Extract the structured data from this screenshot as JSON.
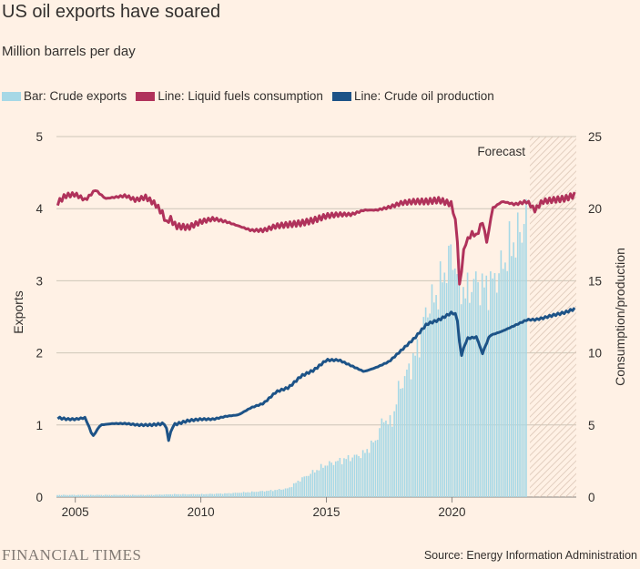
{
  "title": "US oil exports have soared",
  "subtitle": "Million barrels per day",
  "source": "Source: Energy Information Administration",
  "brand": "FINANCIAL TIMES",
  "colors": {
    "background": "#fff1e5",
    "bars": "#a6d8e6",
    "consumption": "#b0325b",
    "production": "#1d5387",
    "grid": "#cec6b9",
    "forecast_hatch": "#d9c3b3",
    "text": "#33302e"
  },
  "chart_data": {
    "type": "bar+line",
    "title": "US oil exports have soared",
    "subtitle": "Million barrels per day",
    "x_range": [
      2004.25,
      2024.95
    ],
    "x_ticks": [
      "2005",
      "2010",
      "2015",
      "2020"
    ],
    "x_tick_values": [
      2005,
      2010,
      2015,
      2020
    ],
    "left_axis": {
      "label": "Exports",
      "range": [
        0,
        5
      ],
      "ticks": [
        "0",
        "1",
        "2",
        "3",
        "4",
        "5"
      ],
      "tick_values": [
        0,
        1,
        2,
        3,
        4,
        5
      ]
    },
    "right_axis": {
      "label": "Consumption/production",
      "range": [
        0,
        25
      ],
      "ticks": [
        "0",
        "5",
        "10",
        "15",
        "20",
        "25"
      ],
      "tick_values": [
        0,
        5,
        10,
        15,
        20,
        25
      ]
    },
    "forecast": {
      "label": "Forecast",
      "start": 2023.1,
      "end": 2024.95
    },
    "grid": true,
    "legend_position": "top",
    "series": [
      {
        "name": "Bar: Crude exports",
        "axis": "left",
        "kind": "bar",
        "points": [
          [
            2004.3,
            0.03
          ],
          [
            2005.0,
            0.03
          ],
          [
            2006.0,
            0.03
          ],
          [
            2007.0,
            0.03
          ],
          [
            2008.0,
            0.03
          ],
          [
            2009.0,
            0.04
          ],
          [
            2010.0,
            0.04
          ],
          [
            2011.0,
            0.05
          ],
          [
            2012.0,
            0.07
          ],
          [
            2012.8,
            0.09
          ],
          [
            2013.5,
            0.12
          ],
          [
            2014.0,
            0.25
          ],
          [
            2014.5,
            0.35
          ],
          [
            2015.0,
            0.45
          ],
          [
            2015.5,
            0.5
          ],
          [
            2016.0,
            0.55
          ],
          [
            2016.5,
            0.6
          ],
          [
            2017.0,
            0.8
          ],
          [
            2017.3,
            1.1
          ],
          [
            2017.6,
            1.0
          ],
          [
            2017.9,
            1.5
          ],
          [
            2018.2,
            1.7
          ],
          [
            2018.6,
            2.0
          ],
          [
            2019.0,
            2.6
          ],
          [
            2019.4,
            2.8
          ],
          [
            2019.8,
            3.2
          ],
          [
            2020.0,
            3.4
          ],
          [
            2020.3,
            3.0
          ],
          [
            2020.6,
            2.8
          ],
          [
            2020.9,
            3.0
          ],
          [
            2021.3,
            2.9
          ],
          [
            2021.7,
            3.0
          ],
          [
            2022.0,
            3.2
          ],
          [
            2022.4,
            3.5
          ],
          [
            2022.8,
            3.7
          ],
          [
            2023.0,
            4.1
          ]
        ]
      },
      {
        "name": "Line: Liquid fuels consumption",
        "axis": "right",
        "kind": "line",
        "points": [
          [
            2004.3,
            20.4
          ],
          [
            2004.6,
            20.9
          ],
          [
            2005.0,
            21.0
          ],
          [
            2005.4,
            20.6
          ],
          [
            2005.8,
            21.3
          ],
          [
            2006.2,
            20.7
          ],
          [
            2006.6,
            20.8
          ],
          [
            2007.0,
            20.9
          ],
          [
            2007.4,
            20.6
          ],
          [
            2007.8,
            20.8
          ],
          [
            2008.2,
            20.3
          ],
          [
            2008.5,
            19.6
          ],
          [
            2008.65,
            18.9
          ],
          [
            2008.75,
            19.4
          ],
          [
            2009.0,
            18.8
          ],
          [
            2009.5,
            18.7
          ],
          [
            2010.0,
            19.1
          ],
          [
            2010.5,
            19.3
          ],
          [
            2011.0,
            19.1
          ],
          [
            2011.5,
            18.8
          ],
          [
            2012.0,
            18.5
          ],
          [
            2012.5,
            18.5
          ],
          [
            2013.0,
            18.8
          ],
          [
            2013.5,
            18.9
          ],
          [
            2014.0,
            19.0
          ],
          [
            2014.5,
            19.2
          ],
          [
            2015.0,
            19.5
          ],
          [
            2015.5,
            19.6
          ],
          [
            2016.0,
            19.6
          ],
          [
            2016.5,
            19.9
          ],
          [
            2017.0,
            19.9
          ],
          [
            2017.5,
            20.1
          ],
          [
            2018.0,
            20.4
          ],
          [
            2018.5,
            20.5
          ],
          [
            2019.0,
            20.5
          ],
          [
            2019.5,
            20.6
          ],
          [
            2020.0,
            20.3
          ],
          [
            2020.2,
            18.5
          ],
          [
            2020.3,
            14.6
          ],
          [
            2020.5,
            17.5
          ],
          [
            2020.8,
            18.3
          ],
          [
            2021.0,
            18.1
          ],
          [
            2021.2,
            19.2
          ],
          [
            2021.4,
            17.6
          ],
          [
            2021.6,
            20.0
          ],
          [
            2022.0,
            20.5
          ],
          [
            2022.5,
            20.3
          ],
          [
            2023.0,
            20.5
          ],
          [
            2023.3,
            19.9
          ],
          [
            2023.6,
            20.5
          ],
          [
            2024.0,
            20.6
          ],
          [
            2024.5,
            20.7
          ],
          [
            2024.95,
            21.0
          ]
        ]
      },
      {
        "name": "Line: Crude oil production",
        "axis": "right",
        "kind": "line",
        "points": [
          [
            2004.3,
            5.5
          ],
          [
            2004.7,
            5.4
          ],
          [
            2005.0,
            5.4
          ],
          [
            2005.4,
            5.5
          ],
          [
            2005.7,
            4.2
          ],
          [
            2006.0,
            5.0
          ],
          [
            2006.5,
            5.1
          ],
          [
            2007.0,
            5.1
          ],
          [
            2007.5,
            5.0
          ],
          [
            2008.0,
            5.0
          ],
          [
            2008.6,
            5.1
          ],
          [
            2008.7,
            3.9
          ],
          [
            2008.9,
            5.0
          ],
          [
            2009.5,
            5.3
          ],
          [
            2010.0,
            5.4
          ],
          [
            2010.5,
            5.4
          ],
          [
            2011.0,
            5.6
          ],
          [
            2011.5,
            5.7
          ],
          [
            2012.0,
            6.2
          ],
          [
            2012.5,
            6.5
          ],
          [
            2013.0,
            7.3
          ],
          [
            2013.5,
            7.6
          ],
          [
            2014.0,
            8.4
          ],
          [
            2014.5,
            8.8
          ],
          [
            2015.0,
            9.5
          ],
          [
            2015.5,
            9.5
          ],
          [
            2016.0,
            9.1
          ],
          [
            2016.5,
            8.7
          ],
          [
            2017.0,
            9.0
          ],
          [
            2017.5,
            9.4
          ],
          [
            2018.0,
            10.2
          ],
          [
            2018.5,
            11.0
          ],
          [
            2019.0,
            12.0
          ],
          [
            2019.5,
            12.3
          ],
          [
            2020.0,
            12.8
          ],
          [
            2020.2,
            12.6
          ],
          [
            2020.35,
            9.7
          ],
          [
            2020.6,
            11.0
          ],
          [
            2021.0,
            11.1
          ],
          [
            2021.2,
            9.9
          ],
          [
            2021.5,
            11.2
          ],
          [
            2022.0,
            11.5
          ],
          [
            2022.5,
            11.9
          ],
          [
            2023.0,
            12.3
          ],
          [
            2023.3,
            12.3
          ],
          [
            2023.6,
            12.4
          ],
          [
            2024.0,
            12.6
          ],
          [
            2024.5,
            12.8
          ],
          [
            2024.95,
            13.1
          ]
        ]
      }
    ]
  }
}
